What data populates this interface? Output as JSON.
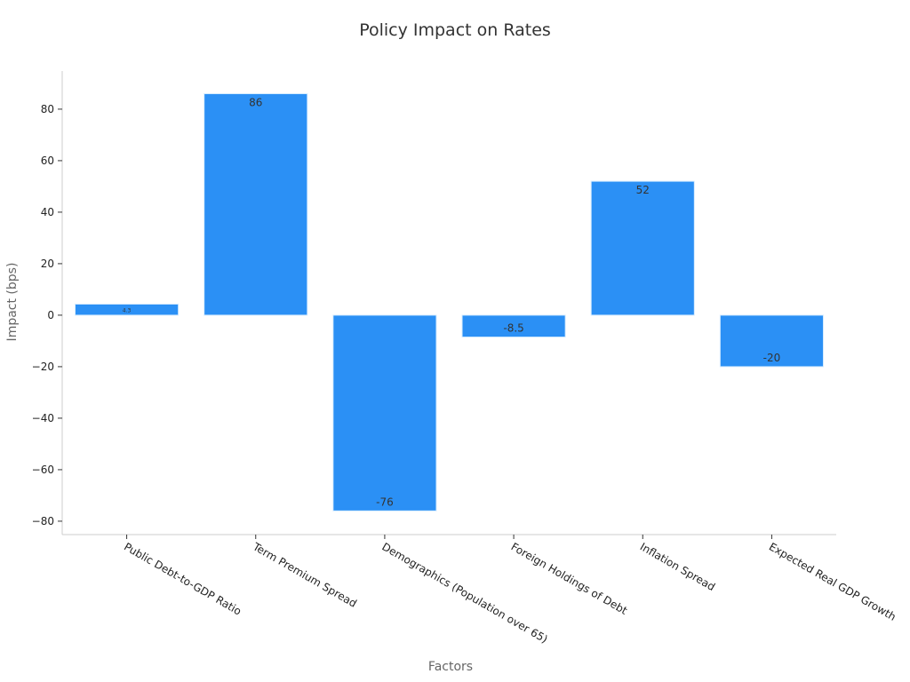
{
  "chart_data": {
    "type": "bar",
    "title": "Policy Impact on Rates",
    "xlabel": "Factors",
    "ylabel": "Impact (bps)",
    "categories": [
      "Public Debt-to-GDP Ratio",
      "Term Premium Spread",
      "Demographics (Population over 65)",
      "Foreign Holdings of Debt",
      "Inflation Spread",
      "Expected Real GDP Growth"
    ],
    "values": [
      4.3,
      86,
      -76,
      -8.5,
      52,
      -20
    ],
    "data_labels": [
      "4.3",
      "86",
      "-76",
      "-8.5",
      "52",
      "-20"
    ],
    "yticks": [
      -80,
      -60,
      -40,
      -20,
      0,
      20,
      40,
      60,
      80
    ],
    "ytick_labels": [
      "−80",
      "−60",
      "−40",
      "−20",
      "0",
      "20",
      "40",
      "60",
      "80"
    ],
    "ylim": [
      -85.2,
      94.8
    ],
    "grid": false,
    "bar_color": "#2b90f5"
  }
}
